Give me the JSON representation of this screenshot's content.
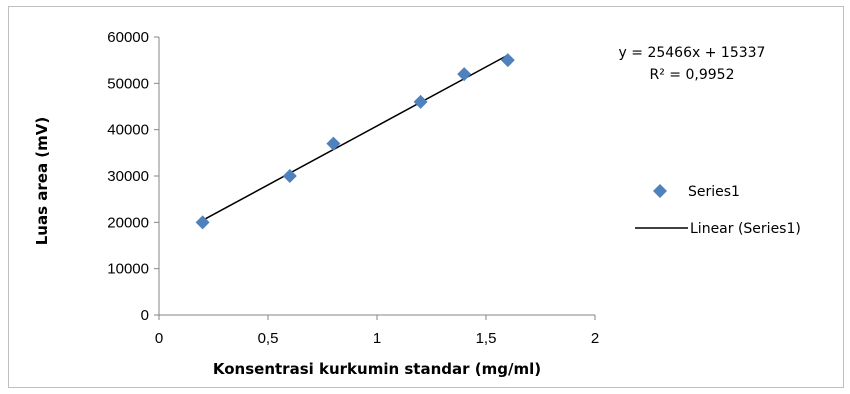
{
  "chart_data": {
    "type": "scatter",
    "title": "",
    "xlabel": "Konsentrasi  kurkumin  standar  (mg/ml)",
    "ylabel": "Luas area (mV)",
    "xlim": [
      0,
      2
    ],
    "ylim": [
      0,
      60000
    ],
    "xticks": [
      0,
      0.5,
      1,
      1.5,
      2
    ],
    "xtick_labels": [
      "0",
      "0,5",
      "1",
      "1,5",
      "2"
    ],
    "yticks": [
      0,
      10000,
      20000,
      30000,
      40000,
      50000,
      60000
    ],
    "ytick_labels": [
      "0",
      "10000",
      "20000",
      "30000",
      "40000",
      "50000",
      "60000"
    ],
    "grid": false,
    "legend_position": "right",
    "series": [
      {
        "name": "Series1",
        "marker": "diamond",
        "color": "#4f81bd",
        "x": [
          0.2,
          0.6,
          0.8,
          1.2,
          1.4,
          1.6
        ],
        "y": [
          20000,
          30000,
          37000,
          46000,
          52000,
          55000
        ]
      }
    ],
    "trendline": {
      "name": "Linear (Series1)",
      "color": "#000000",
      "slope": 25466,
      "intercept": 15337,
      "x_range": [
        0.2,
        1.6
      ],
      "equation": "y = 25466x + 15337",
      "r_squared": "R² = 0,9952"
    }
  }
}
